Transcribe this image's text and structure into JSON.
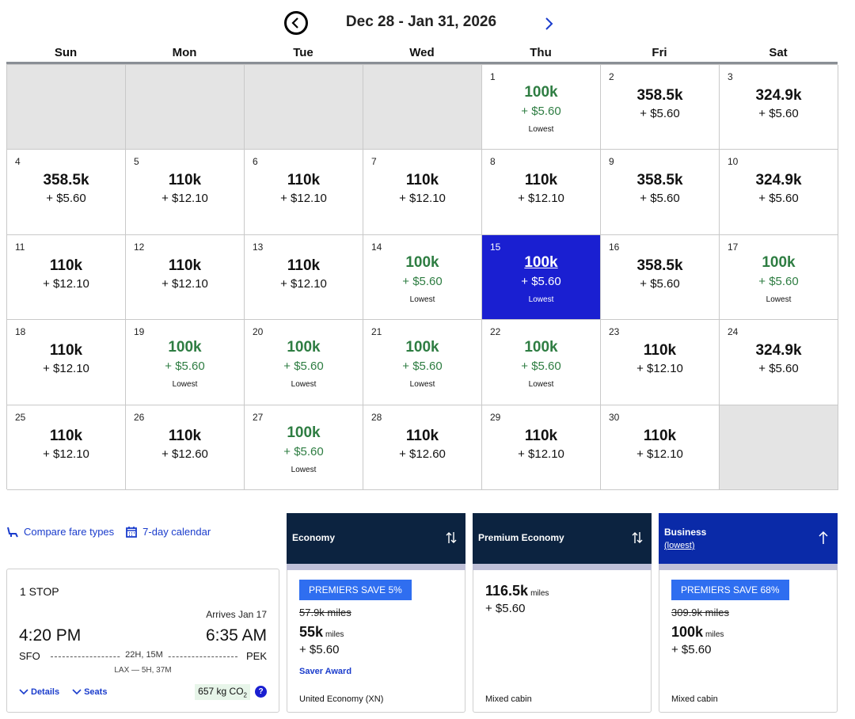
{
  "header": {
    "range": "Dec 28 - Jan 31, 2026"
  },
  "weekdays": [
    "Sun",
    "Mon",
    "Tue",
    "Wed",
    "Thu",
    "Fri",
    "Sat"
  ],
  "calendar": {
    "lowest_label": "Lowest",
    "cells": [
      {
        "empty": true
      },
      {
        "empty": true
      },
      {
        "empty": true
      },
      {
        "empty": true
      },
      {
        "day": "1",
        "miles": "100k",
        "tax": "+ $5.60",
        "lowest": true
      },
      {
        "day": "2",
        "miles": "358.5k",
        "tax": "+ $5.60"
      },
      {
        "day": "3",
        "miles": "324.9k",
        "tax": "+ $5.60"
      },
      {
        "day": "4",
        "miles": "358.5k",
        "tax": "+ $5.60"
      },
      {
        "day": "5",
        "miles": "110k",
        "tax": "+ $12.10"
      },
      {
        "day": "6",
        "miles": "110k",
        "tax": "+ $12.10"
      },
      {
        "day": "7",
        "miles": "110k",
        "tax": "+ $12.10"
      },
      {
        "day": "8",
        "miles": "110k",
        "tax": "+ $12.10"
      },
      {
        "day": "9",
        "miles": "358.5k",
        "tax": "+ $5.60"
      },
      {
        "day": "10",
        "miles": "324.9k",
        "tax": "+ $5.60"
      },
      {
        "day": "11",
        "miles": "110k",
        "tax": "+ $12.10"
      },
      {
        "day": "12",
        "miles": "110k",
        "tax": "+ $12.10"
      },
      {
        "day": "13",
        "miles": "110k",
        "tax": "+ $12.10"
      },
      {
        "day": "14",
        "miles": "100k",
        "tax": "+ $5.60",
        "lowest": true
      },
      {
        "day": "15",
        "miles": "100k",
        "tax": "+ $5.60",
        "lowest": true,
        "selected": true
      },
      {
        "day": "16",
        "miles": "358.5k",
        "tax": "+ $5.60"
      },
      {
        "day": "17",
        "miles": "100k",
        "tax": "+ $5.60",
        "lowest": true
      },
      {
        "day": "18",
        "miles": "110k",
        "tax": "+ $12.10"
      },
      {
        "day": "19",
        "miles": "100k",
        "tax": "+ $5.60",
        "lowest": true
      },
      {
        "day": "20",
        "miles": "100k",
        "tax": "+ $5.60",
        "lowest": true
      },
      {
        "day": "21",
        "miles": "100k",
        "tax": "+ $5.60",
        "lowest": true
      },
      {
        "day": "22",
        "miles": "100k",
        "tax": "+ $5.60",
        "lowest": true
      },
      {
        "day": "23",
        "miles": "110k",
        "tax": "+ $12.10"
      },
      {
        "day": "24",
        "miles": "324.9k",
        "tax": "+ $5.60"
      },
      {
        "day": "25",
        "miles": "110k",
        "tax": "+ $12.10"
      },
      {
        "day": "26",
        "miles": "110k",
        "tax": "+ $12.60"
      },
      {
        "day": "27",
        "miles": "100k",
        "tax": "+ $5.60",
        "lowest": true
      },
      {
        "day": "28",
        "miles": "110k",
        "tax": "+ $12.60"
      },
      {
        "day": "29",
        "miles": "110k",
        "tax": "+ $12.10"
      },
      {
        "day": "30",
        "miles": "110k",
        "tax": "+ $12.10"
      },
      {
        "empty": true
      }
    ]
  },
  "links": {
    "compare": "Compare fare types",
    "seven_day": "7-day calendar"
  },
  "flight": {
    "stops": "1 STOP",
    "arrives": "Arrives Jan 17",
    "dep_time": "4:20 PM",
    "arr_time": "6:35 AM",
    "dep_code": "SFO",
    "arr_code": "PEK",
    "duration": "22H, 15M",
    "layover": "LAX — 5H, 37M",
    "details": "Details",
    "seats": "Seats",
    "co2_value": "657 kg CO",
    "co2_sub": "2",
    "info": "?"
  },
  "fares": {
    "economy": {
      "name": "Economy",
      "badge": "PREMIERS SAVE 5%",
      "strike": "57.9k miles",
      "price": "55k",
      "unit": "miles",
      "tax": "+ $5.60",
      "saver": "Saver Award",
      "note": "United Economy (XN)"
    },
    "premium": {
      "name": "Premium Economy",
      "price": "116.5k",
      "unit": "miles",
      "tax": "+ $5.60",
      "note": "Mixed cabin"
    },
    "business": {
      "name": "Business",
      "lowest": "(lowest)",
      "badge": "PREMIERS SAVE 68%",
      "strike": "309.9k miles",
      "price": "100k",
      "unit": "miles",
      "tax": "+ $5.60",
      "note": "Mixed cabin"
    }
  },
  "colors": {
    "selected": "#1a1fd1",
    "lowest_green": "#2e7d42",
    "header_navy": "#0c2340",
    "business_blue": "#0a2aa8",
    "badge_blue": "#2f6ef0"
  }
}
